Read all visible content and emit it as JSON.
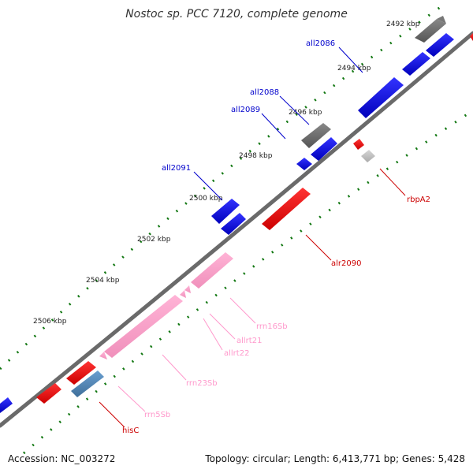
{
  "header": {
    "title": "Nostoc sp. PCC 7120, complete genome"
  },
  "footer": {
    "accession": "Accession: NC_003272",
    "summary": "Topology: circular; Length: 6,413,771 bp; Genes: 5,428"
  },
  "ruler": {
    "ticks": [
      {
        "id": "2492",
        "label": "2492 kbp"
      },
      {
        "id": "2494",
        "label": "2494 kbp"
      },
      {
        "id": "2496",
        "label": "2496 kbp"
      },
      {
        "id": "2498",
        "label": "2498 kbp"
      },
      {
        "id": "2500",
        "label": "2500 kbp"
      },
      {
        "id": "2502",
        "label": "2502 kbp"
      },
      {
        "id": "2504",
        "label": "2504 kbp"
      },
      {
        "id": "2506",
        "label": "2506 kbp"
      }
    ]
  },
  "features": {
    "labels": {
      "all2086": "all2086",
      "all2088": "all2088",
      "all2089": "all2089",
      "all2091": "all2091",
      "rbpA2": "rbpA2",
      "alr2090": "alr2090",
      "rrn16Sb": "rrn16Sb",
      "allrt21": "allrt21",
      "allrt22": "allrt22",
      "rrn23Sb": "rrn23Sb",
      "rrn5Sb": "rrn5Sb",
      "hisC": "hisC"
    }
  },
  "colors": {
    "minus_strand": "#0000ee",
    "plus_strand": "#ee0000",
    "rrna": "#ff99cc",
    "pseudo": "#666666",
    "other": "#4a7fb0",
    "tick_green": "#117711"
  }
}
